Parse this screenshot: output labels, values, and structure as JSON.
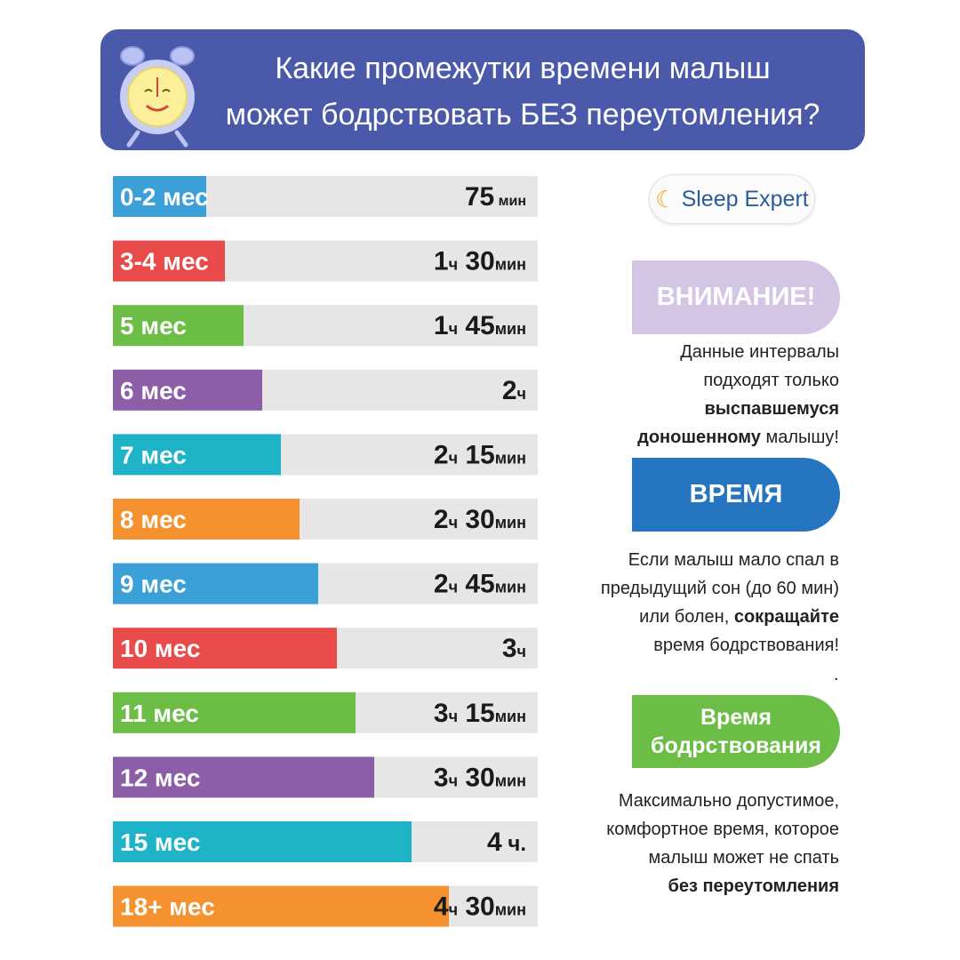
{
  "header": {
    "title_line1": "Какие промежутки времени малыш",
    "title_line2": "может бодрствовать БЕЗ переутомления?"
  },
  "brand": {
    "label": "Sleep Expert",
    "icon": "crescent-moon-icon"
  },
  "attention": {
    "title": "ВНИМАНИЕ!",
    "text_1": "Данные интервалы",
    "text_2": "подходят только",
    "text_3": "выспавшемуся",
    "text_4": "доношенному",
    "text_5": "малышу!"
  },
  "time": {
    "title": "ВРЕМЯ",
    "text_1": "Если малыш  мало спал в",
    "text_2": "предыдущий сон (до 60 мин)",
    "text_3": "или болен,",
    "text_4": "сокращайте",
    "text_5": "время бодрствования!",
    "text_6": "."
  },
  "awake": {
    "title_1": "Время",
    "title_2": "бодрствования",
    "text_1": "Максимально допустимое,",
    "text_2": "комфортное  время, которое",
    "text_3": "малыш может не спать",
    "text_4": "без переутомления"
  },
  "chart_data": {
    "type": "bar",
    "orientation": "horizontal",
    "unit": "min",
    "xlim": [
      0,
      300
    ],
    "categories": [
      "0-2 мес",
      "3-4 мес",
      "5 мес",
      "6 мес",
      "7 мес",
      "8 мес",
      "9 мес",
      "10 мес",
      "11 мес",
      "12 мес",
      "15 мес",
      "18+ мес"
    ],
    "values": [
      75,
      90,
      105,
      120,
      135,
      150,
      165,
      180,
      195,
      210,
      240,
      270
    ],
    "labels": [
      {
        "h": "",
        "min": "75",
        "tail": "мин"
      },
      {
        "h": "1",
        "min": "30",
        "tail": "мин"
      },
      {
        "h": "1",
        "min": "45",
        "tail": "мин"
      },
      {
        "h": "2",
        "min": "",
        "tail": ""
      },
      {
        "h": "2",
        "min": "15",
        "tail": "мин"
      },
      {
        "h": "2",
        "min": "30",
        "tail": "мин"
      },
      {
        "h": "2",
        "min": "45",
        "tail": "мин"
      },
      {
        "h": "3",
        "min": "",
        "tail": ""
      },
      {
        "h": "3",
        "min": "15",
        "tail": "мин"
      },
      {
        "h": "3",
        "min": "30",
        "tail": "мин"
      },
      {
        "h": "4",
        "min": "",
        "tail": "ч."
      },
      {
        "h": "4",
        "min": "30",
        "tail": "мин"
      }
    ],
    "hour_suffix": "ч",
    "colors": [
      "#3ba0d7",
      "#e94b4b",
      "#6cbd45",
      "#8d5ea8",
      "#1fb3c8",
      "#f5912e",
      "#3ba0d7",
      "#e94b4b",
      "#6cbd45",
      "#8d5ea8",
      "#1fb3c8",
      "#f5912e"
    ],
    "track_color": "#e6e6e6",
    "label_color": "#ffffff",
    "value_color": "#1a1a1a"
  }
}
